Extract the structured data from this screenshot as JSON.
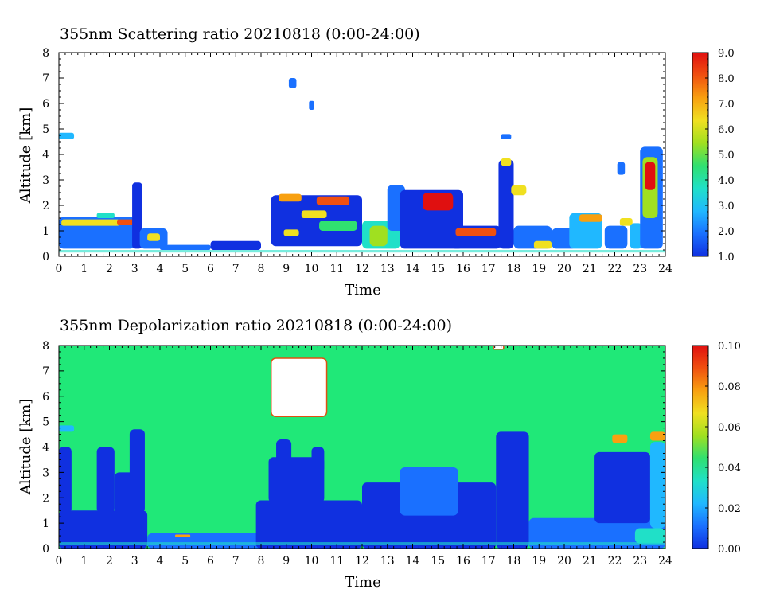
{
  "chart_data": [
    {
      "type": "heatmap",
      "title": "355nm Scattering ratio  20210818 (0:00-24:00)",
      "xlabel": "Time",
      "ylabel": "Altitude [km]",
      "xlim": [
        0,
        24
      ],
      "ylim": [
        0,
        8
      ],
      "x_ticks": [
        "0",
        "1",
        "2",
        "3",
        "4",
        "5",
        "6",
        "7",
        "8",
        "9",
        "10",
        "11",
        "12",
        "13",
        "14",
        "15",
        "16",
        "17",
        "18",
        "19",
        "20",
        "21",
        "22",
        "23",
        "24"
      ],
      "y_ticks": [
        "0",
        "1",
        "2",
        "3",
        "4",
        "5",
        "6",
        "7",
        "8"
      ],
      "colorbar": {
        "range": [
          1.0,
          9.0
        ],
        "ticks": [
          "1.0",
          "2.0",
          "3.0",
          "4.0",
          "5.0",
          "6.0",
          "7.0",
          "8.0",
          "9.0"
        ],
        "colors": [
          "#1030e0",
          "#1a70ff",
          "#20b8ff",
          "#20e0c8",
          "#30e070",
          "#a0e020",
          "#f0e020",
          "#f8a010",
          "#f05010",
          "#e01010"
        ]
      },
      "background": "#ffffff",
      "features": [
        {
          "t0": 0.0,
          "t1": 3.0,
          "z0": 0.3,
          "z1": 1.55,
          "level": 1.8
        },
        {
          "t0": 0.1,
          "t1": 2.4,
          "z0": 1.2,
          "z1": 1.45,
          "level": 6.0
        },
        {
          "t0": 2.3,
          "t1": 3.0,
          "z0": 1.25,
          "z1": 1.45,
          "level": 7.5
        },
        {
          "t0": 1.5,
          "t1": 2.2,
          "z0": 1.5,
          "z1": 1.7,
          "level": 4.0
        },
        {
          "t0": 2.9,
          "t1": 3.3,
          "z0": 0.3,
          "z1": 2.9,
          "level": 1.4
        },
        {
          "t0": 3.2,
          "t1": 4.3,
          "z0": 0.3,
          "z1": 1.1,
          "level": 2.2
        },
        {
          "t0": 3.5,
          "t1": 4.0,
          "z0": 0.6,
          "z1": 0.9,
          "level": 6.5
        },
        {
          "t0": 4.0,
          "t1": 6.0,
          "z0": 0.25,
          "z1": 0.45,
          "level": 1.8
        },
        {
          "t0": 6.0,
          "t1": 8.0,
          "z0": 0.25,
          "z1": 0.6,
          "level": 1.6
        },
        {
          "t0": 0.0,
          "t1": 0.6,
          "z0": 4.6,
          "z1": 4.85,
          "level": 3.0
        },
        {
          "t0": 8.4,
          "t1": 12.0,
          "z0": 0.4,
          "z1": 2.4,
          "level": 1.6
        },
        {
          "t0": 8.7,
          "t1": 9.6,
          "z0": 2.15,
          "z1": 2.45,
          "level": 7.0
        },
        {
          "t0": 9.6,
          "t1": 10.6,
          "z0": 1.5,
          "z1": 1.8,
          "level": 6.5
        },
        {
          "t0": 10.2,
          "t1": 11.5,
          "z0": 2.0,
          "z1": 2.35,
          "level": 7.5
        },
        {
          "t0": 8.9,
          "t1": 9.5,
          "z0": 0.8,
          "z1": 1.05,
          "level": 6.0
        },
        {
          "t0": 10.3,
          "t1": 11.8,
          "z0": 1.0,
          "z1": 1.4,
          "level": 4.5
        },
        {
          "t0": 9.1,
          "t1": 9.4,
          "z0": 6.6,
          "z1": 7.0,
          "level": 2.5
        },
        {
          "t0": 9.9,
          "t1": 10.1,
          "z0": 5.75,
          "z1": 6.1,
          "level": 2.5
        },
        {
          "t0": 12.0,
          "t1": 13.5,
          "z0": 0.3,
          "z1": 1.4,
          "level": 3.5
        },
        {
          "t0": 12.3,
          "t1": 13.0,
          "z0": 0.4,
          "z1": 1.2,
          "level": 5.5
        },
        {
          "t0": 13.0,
          "t1": 13.7,
          "z0": 1.0,
          "z1": 2.8,
          "level": 2.0
        },
        {
          "t0": 13.5,
          "t1": 16.0,
          "z0": 0.3,
          "z1": 2.6,
          "level": 1.6
        },
        {
          "t0": 14.4,
          "t1": 15.6,
          "z0": 1.8,
          "z1": 2.5,
          "level": 8.5
        },
        {
          "t0": 15.5,
          "t1": 17.5,
          "z0": 0.3,
          "z1": 1.2,
          "level": 1.7
        },
        {
          "t0": 15.7,
          "t1": 17.3,
          "z0": 0.8,
          "z1": 1.1,
          "level": 7.5
        },
        {
          "t0": 17.4,
          "t1": 18.0,
          "z0": 0.3,
          "z1": 3.8,
          "level": 1.5
        },
        {
          "t0": 17.5,
          "t1": 17.9,
          "z0": 3.55,
          "z1": 3.85,
          "level": 6.0
        },
        {
          "t0": 17.9,
          "t1": 18.5,
          "z0": 2.4,
          "z1": 2.8,
          "level": 6.5
        },
        {
          "t0": 17.5,
          "t1": 17.9,
          "z0": 4.6,
          "z1": 4.8,
          "level": 2.5
        },
        {
          "t0": 18.0,
          "t1": 19.5,
          "z0": 0.3,
          "z1": 1.2,
          "level": 2.2
        },
        {
          "t0": 18.8,
          "t1": 19.5,
          "z0": 0.3,
          "z1": 0.6,
          "level": 6.0
        },
        {
          "t0": 19.5,
          "t1": 20.5,
          "z0": 0.3,
          "z1": 1.1,
          "level": 2.5
        },
        {
          "t0": 20.2,
          "t1": 21.5,
          "z0": 0.3,
          "z1": 1.7,
          "level": 3.0
        },
        {
          "t0": 20.6,
          "t1": 21.5,
          "z0": 1.35,
          "z1": 1.65,
          "level": 7.0
        },
        {
          "t0": 21.6,
          "t1": 22.5,
          "z0": 0.3,
          "z1": 1.2,
          "level": 1.8
        },
        {
          "t0": 22.2,
          "t1": 22.7,
          "z0": 1.2,
          "z1": 1.5,
          "level": 6.0
        },
        {
          "t0": 22.6,
          "t1": 23.1,
          "z0": 0.3,
          "z1": 1.3,
          "level": 3.0
        },
        {
          "t0": 23.0,
          "t1": 23.9,
          "z0": 0.3,
          "z1": 4.3,
          "level": 2.2
        },
        {
          "t0": 23.1,
          "t1": 23.7,
          "z0": 1.5,
          "z1": 3.9,
          "level": 5.5
        },
        {
          "t0": 23.2,
          "t1": 23.6,
          "z0": 2.6,
          "z1": 3.7,
          "level": 8.8
        },
        {
          "t0": 22.1,
          "t1": 22.4,
          "z0": 3.2,
          "z1": 3.7,
          "level": 2.0
        }
      ]
    },
    {
      "type": "heatmap",
      "title": "355nm Depolarization ratio  20210818 (0:00-24:00)",
      "xlabel": "Time",
      "ylabel": "Altitude [km]",
      "xlim": [
        0,
        24
      ],
      "ylim": [
        0,
        8
      ],
      "x_ticks": [
        "0",
        "1",
        "2",
        "3",
        "4",
        "5",
        "6",
        "7",
        "8",
        "9",
        "10",
        "11",
        "12",
        "13",
        "14",
        "15",
        "16",
        "17",
        "18",
        "19",
        "20",
        "21",
        "22",
        "23",
        "24"
      ],
      "y_ticks": [
        "0",
        "1",
        "2",
        "3",
        "4",
        "5",
        "6",
        "7",
        "8"
      ],
      "colorbar": {
        "range": [
          0.0,
          0.1
        ],
        "ticks": [
          "0.00",
          "0.02",
          "0.04",
          "0.06",
          "0.08",
          "0.10"
        ],
        "colors": [
          "#1030e0",
          "#1a70ff",
          "#20b8ff",
          "#20e0c8",
          "#30e070",
          "#a0e020",
          "#f0e020",
          "#f8a010",
          "#f05010",
          "#e01010"
        ]
      },
      "background": "#20e878",
      "features": [
        {
          "t0": 0.0,
          "t1": 3.5,
          "z0": 0.0,
          "z1": 1.5,
          "level": 0.01
        },
        {
          "t0": 0.0,
          "t1": 0.5,
          "z0": 1.4,
          "z1": 4.0,
          "level": 0.005
        },
        {
          "t0": 1.5,
          "t1": 2.2,
          "z0": 1.4,
          "z1": 4.0,
          "level": 0.005
        },
        {
          "t0": 2.2,
          "t1": 3.3,
          "z0": 1.4,
          "z1": 3.0,
          "level": 0.005
        },
        {
          "t0": 2.8,
          "t1": 3.4,
          "z0": 1.4,
          "z1": 4.7,
          "level": 0.005
        },
        {
          "t0": 0.0,
          "t1": 0.6,
          "z0": 4.6,
          "z1": 4.85,
          "level": 0.025
        },
        {
          "t0": 3.5,
          "t1": 8.0,
          "z0": 0.0,
          "z1": 0.6,
          "level": 0.02
        },
        {
          "t0": 4.6,
          "t1": 5.2,
          "z0": 0.45,
          "z1": 0.55,
          "level": 0.08
        },
        {
          "t0": 7.8,
          "t1": 12.0,
          "z0": 0.0,
          "z1": 1.9,
          "level": 0.008
        },
        {
          "t0": 8.3,
          "t1": 10.5,
          "z0": 1.8,
          "z1": 3.6,
          "level": 0.005
        },
        {
          "t0": 8.6,
          "t1": 9.2,
          "z0": 3.3,
          "z1": 4.3,
          "level": 0.005
        },
        {
          "t0": 10.0,
          "t1": 10.5,
          "z0": 3.0,
          "z1": 4.0,
          "level": 0.005
        },
        {
          "t0": 12.0,
          "t1": 17.3,
          "z0": 0.0,
          "z1": 2.6,
          "level": 0.01
        },
        {
          "t0": 13.5,
          "t1": 15.8,
          "z0": 1.3,
          "z1": 3.2,
          "level": 0.012
        },
        {
          "t0": 17.3,
          "t1": 18.6,
          "z0": 0.0,
          "z1": 4.6,
          "level": 0.005
        },
        {
          "t0": 18.6,
          "t1": 24.0,
          "z0": 0.0,
          "z1": 1.2,
          "level": 0.02
        },
        {
          "t0": 21.2,
          "t1": 23.4,
          "z0": 1.0,
          "z1": 3.8,
          "level": 0.008
        },
        {
          "t0": 22.8,
          "t1": 24.0,
          "z0": 0.2,
          "z1": 0.8,
          "level": 0.035
        },
        {
          "t0": 23.4,
          "t1": 24.0,
          "z0": 0.8,
          "z1": 4.2,
          "level": 0.025
        },
        {
          "t0": 21.9,
          "t1": 22.5,
          "z0": 4.15,
          "z1": 4.5,
          "level": 0.075
        },
        {
          "t0": 23.4,
          "t1": 24.0,
          "z0": 4.25,
          "z1": 4.6,
          "level": 0.075
        },
        {
          "t0": 8.4,
          "t1": 10.6,
          "z0": 5.2,
          "z1": 7.5,
          "level": "nodata"
        },
        {
          "t0": 17.2,
          "t1": 17.6,
          "z0": 7.85,
          "z1": 8.0,
          "level": "nodata"
        }
      ]
    }
  ]
}
